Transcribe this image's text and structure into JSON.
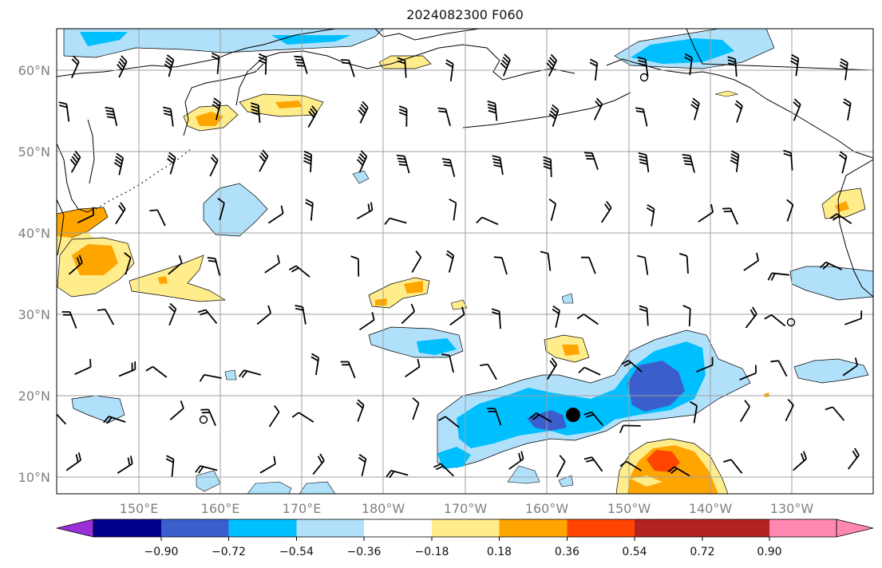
{
  "title": "2024082300 F060",
  "lat_labels": [
    "60°N",
    "50°N",
    "40°N",
    "30°N",
    "20°N",
    "10°N"
  ],
  "lon_labels": [
    "150°E",
    "160°E",
    "170°E",
    "180°W",
    "170°W",
    "160°W",
    "150°W",
    "140°W",
    "130°W"
  ],
  "colorbar": {
    "ticks": [
      "−0.90",
      "−0.72",
      "−0.54",
      "−0.36",
      "−0.18",
      "0.18",
      "0.36",
      "0.54",
      "0.72",
      "0.90"
    ],
    "colors": [
      "#9b30d9",
      "#00008b",
      "#3a5fcd",
      "#00bfff",
      "#b0e0fa",
      "#ffffff",
      "#ffec8b",
      "#ffa500",
      "#ff4500",
      "#b22222",
      "#ff88b0"
    ]
  },
  "colors": {
    "land": "#000000",
    "grid": "#a0a0a0",
    "label": "#808080",
    "marker": "#000000"
  }
}
